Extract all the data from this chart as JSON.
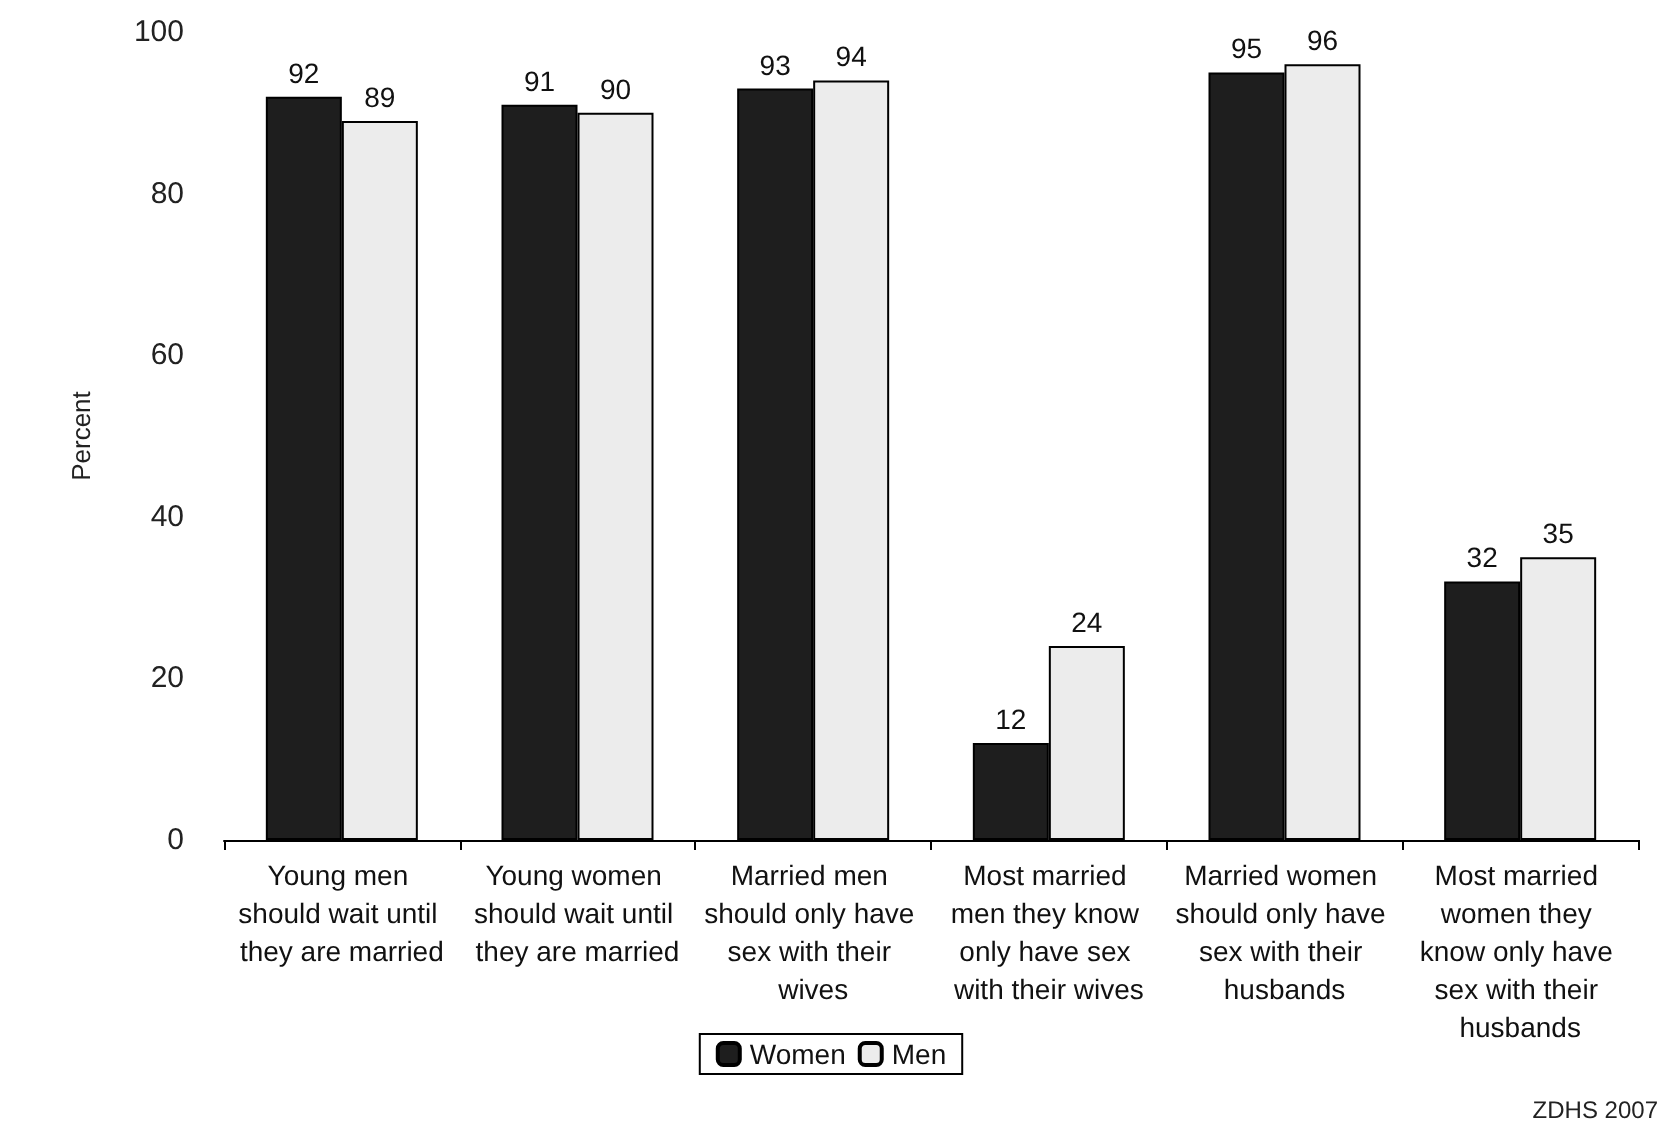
{
  "chart_data": {
    "type": "bar",
    "ylabel": "Percent",
    "categories": [
      "Young men should wait until they are married",
      "Young women should wait until they are married",
      "Married men should only have sex with their wives",
      "Most married men they know only have sex with their wives",
      "Married women should only have sex with their husbands",
      "Most married women they know only have sex with their husbands"
    ],
    "series": [
      {
        "name": "Women",
        "color": "#1e1e1e",
        "values": [
          92,
          91,
          93,
          12,
          95,
          32
        ]
      },
      {
        "name": "Men",
        "color": "#ececec",
        "values": [
          89,
          90,
          94,
          24,
          96,
          35
        ]
      }
    ],
    "ylim": [
      0,
      100
    ],
    "yticks": [
      0,
      20,
      40,
      60,
      80,
      100
    ],
    "grid": false,
    "legend": "bottom",
    "data_labels": true,
    "annotations": [
      "ZDHS 2007"
    ]
  }
}
